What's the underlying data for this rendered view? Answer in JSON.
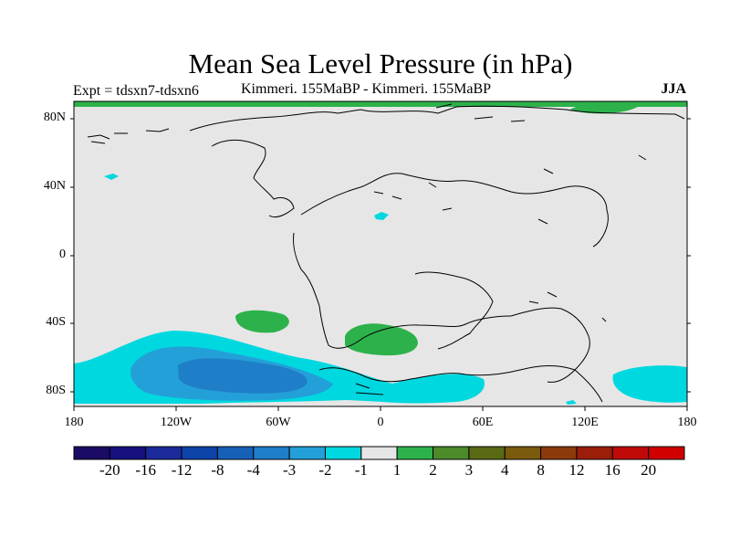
{
  "title": "Mean Sea Level Pressure (in hPa)",
  "experiment": "Expt = tdsxn7-tdsxn6",
  "comparison": "Kimmeri. 155MaBP - Kimmeri. 155MaBP",
  "season": "JJA",
  "lat_labels": [
    "80N",
    "40N",
    "0",
    "40S",
    "80S"
  ],
  "lon_labels": [
    "180",
    "120W",
    "60W",
    "0",
    "60E",
    "120E",
    "180"
  ],
  "colorbar": {
    "colors": [
      "#1a0c64",
      "#16107e",
      "#1b2a9a",
      "#0c44a8",
      "#1660b8",
      "#1f7ec8",
      "#23a0d8",
      "#00d8e0",
      "#e6e6e6",
      "#2db24b",
      "#4c8a2a",
      "#5a6a14",
      "#7a5a0c",
      "#8c3a0c",
      "#9a1e0a",
      "#c00a0a",
      "#d00000"
    ],
    "labels": [
      "-20",
      "-16",
      "-12",
      "-8",
      "-4",
      "-3",
      "-2",
      "-1",
      "1",
      "2",
      "3",
      "4",
      "8",
      "12",
      "16",
      "20"
    ]
  },
  "colors": {
    "land_ocean": "#e6e6e6",
    "neg1": "#00d8e0",
    "neg2": "#23a0d8",
    "neg3": "#1f7ec8",
    "pos2": "#2db24b"
  }
}
